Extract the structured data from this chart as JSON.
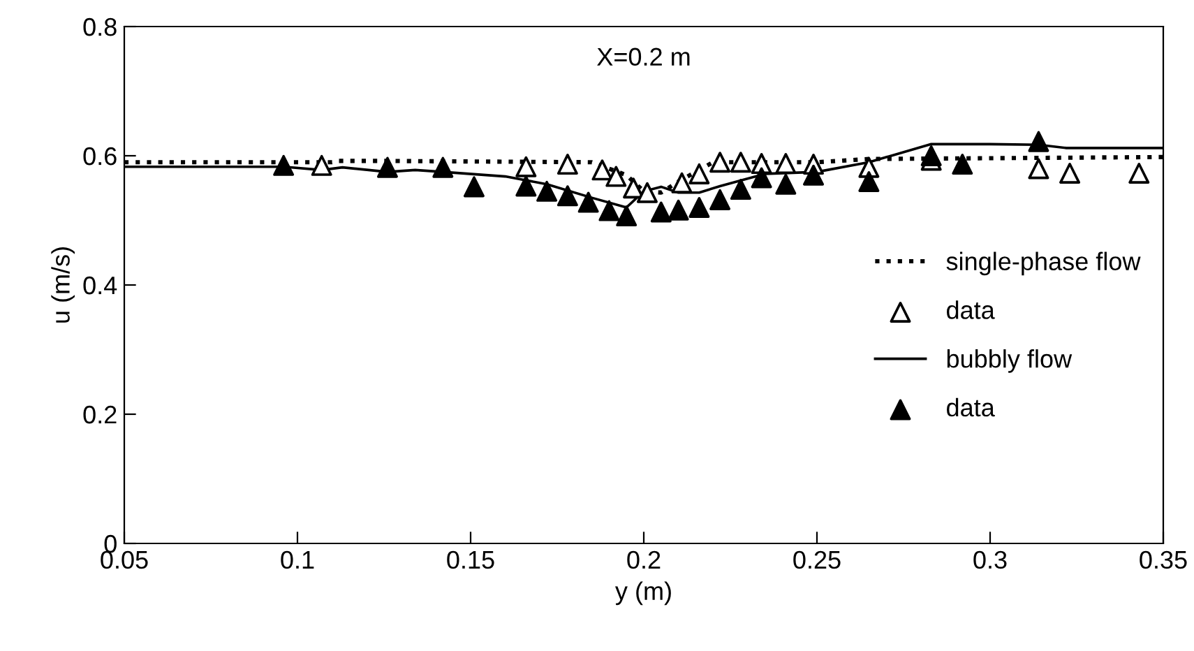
{
  "chart_data": {
    "type": "line",
    "xlabel": "y (m)",
    "ylabel": "u (m/s)",
    "annotations": [
      "X=0.2 m"
    ],
    "xlim": [
      0.05,
      0.35
    ],
    "xticks": [
      0.05,
      0.1,
      0.15,
      0.2,
      0.25,
      0.3,
      0.35
    ],
    "ylim": [
      0,
      0.8
    ],
    "yticks": [
      0,
      0.2,
      0.4,
      0.6,
      0.8
    ],
    "grid": false,
    "legend": "right",
    "series": [
      {
        "name": "single-phase flow",
        "line_style": "dotted",
        "marker": "none",
        "color": "#000000",
        "x": [
          0.05,
          0.11,
          0.112,
          0.125,
          0.185,
          0.195,
          0.2,
          0.205,
          0.21,
          0.22,
          0.25,
          0.265,
          0.35
        ],
        "values": [
          0.59,
          0.59,
          0.592,
          0.592,
          0.59,
          0.57,
          0.545,
          0.543,
          0.56,
          0.59,
          0.59,
          0.595,
          0.598
        ]
      },
      {
        "name": "data",
        "type": "scatter",
        "marker": "triangle",
        "color": "#ffffff",
        "x": [
          0.107,
          0.166,
          0.178,
          0.188,
          0.192,
          0.197,
          0.201,
          0.211,
          0.216,
          0.222,
          0.228,
          0.234,
          0.241,
          0.249,
          0.265,
          0.283,
          0.314,
          0.323,
          0.343
        ],
        "values": [
          0.585,
          0.583,
          0.587,
          0.578,
          0.568,
          0.55,
          0.543,
          0.558,
          0.572,
          0.59,
          0.59,
          0.588,
          0.588,
          0.587,
          0.582,
          0.593,
          0.58,
          0.573,
          0.573
        ]
      },
      {
        "name": "bubbly flow",
        "line_style": "solid",
        "marker": "none",
        "color": "#000000",
        "x": [
          0.05,
          0.096,
          0.107,
          0.113,
          0.126,
          0.134,
          0.142,
          0.16,
          0.172,
          0.185,
          0.195,
          0.2,
          0.205,
          0.21,
          0.216,
          0.222,
          0.235,
          0.25,
          0.265,
          0.283,
          0.3,
          0.314,
          0.322,
          0.35
        ],
        "values": [
          0.583,
          0.583,
          0.578,
          0.582,
          0.575,
          0.578,
          0.575,
          0.568,
          0.556,
          0.535,
          0.52,
          0.545,
          0.552,
          0.543,
          0.543,
          0.553,
          0.572,
          0.575,
          0.59,
          0.618,
          0.618,
          0.617,
          0.612,
          0.612
        ]
      },
      {
        "name": "data",
        "type": "scatter",
        "marker": "triangle",
        "color": "#000000",
        "x": [
          0.096,
          0.126,
          0.142,
          0.151,
          0.166,
          0.172,
          0.178,
          0.184,
          0.19,
          0.195,
          0.205,
          0.21,
          0.216,
          0.222,
          0.228,
          0.234,
          0.241,
          0.249,
          0.265,
          0.283,
          0.292,
          0.314
        ],
        "values": [
          0.585,
          0.582,
          0.582,
          0.552,
          0.553,
          0.545,
          0.538,
          0.528,
          0.515,
          0.507,
          0.513,
          0.516,
          0.52,
          0.532,
          0.548,
          0.566,
          0.556,
          0.57,
          0.56,
          0.6,
          0.587,
          0.622
        ]
      }
    ]
  }
}
